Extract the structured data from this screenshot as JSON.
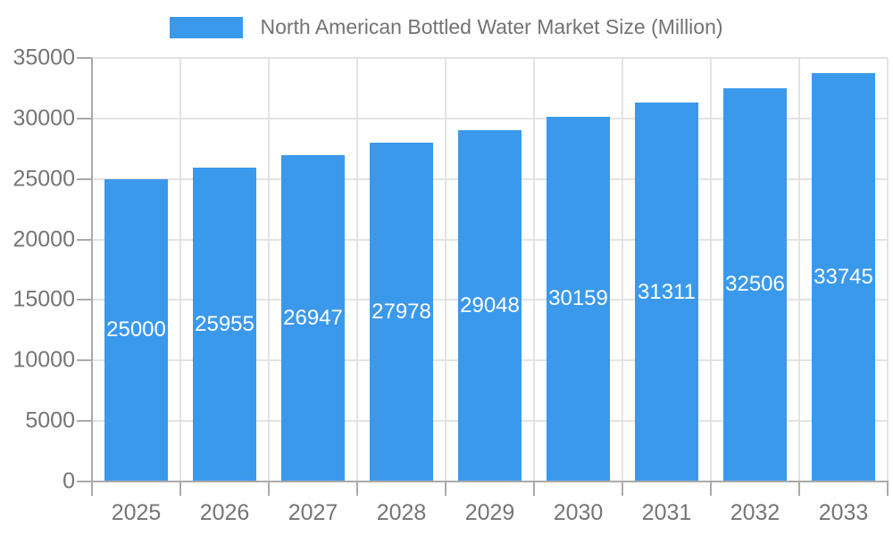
{
  "legend": {
    "label": "North American Bottled Water Market Size (Million)",
    "swatch_color": "#3B99EC"
  },
  "chart_data": {
    "type": "bar",
    "title": "North American Bottled Water Market Size (Million)",
    "series_name": "North American Bottled Water Market Size (Million)",
    "categories": [
      "2025",
      "2026",
      "2027",
      "2028",
      "2029",
      "2030",
      "2031",
      "2032",
      "2033"
    ],
    "values": [
      25000,
      25955,
      26947,
      27978,
      29048,
      30159,
      31311,
      32506,
      33745
    ],
    "value_labels": [
      "25000",
      "25955",
      "26947",
      "27978",
      "29048",
      "30159",
      "31311",
      "32506",
      "33745"
    ],
    "xlabel": "",
    "ylabel": "",
    "ylim": [
      0,
      35000
    ],
    "yticks": [
      0,
      5000,
      10000,
      15000,
      20000,
      25000,
      30000,
      35000
    ],
    "ytick_labels": [
      "0",
      "5000",
      "10000",
      "15000",
      "20000",
      "25000",
      "30000",
      "35000"
    ],
    "grid": true,
    "legend_position": "top-center",
    "colors": {
      "bar": "#3B99EC",
      "value_text": "#ffffff",
      "axis_text": "#757575",
      "gridline": "#e3e3e3",
      "axis_line": "#aaaaaa"
    }
  }
}
